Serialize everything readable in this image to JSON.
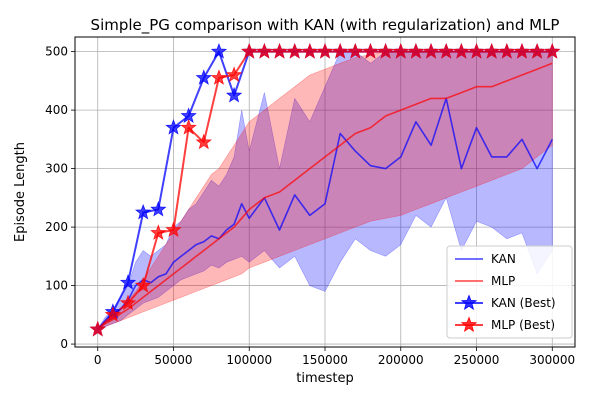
{
  "chart_data": {
    "type": "line",
    "title": "Simple_PG comparison with KAN (with regularization) and MLP",
    "xlabel": "timestep",
    "ylabel": "Episode Length",
    "xlim": [
      -15000,
      315000
    ],
    "ylim": [
      -5,
      525
    ],
    "x_ticks": [
      0,
      50000,
      100000,
      150000,
      200000,
      250000,
      300000
    ],
    "x_tick_labels": [
      "0",
      "50000",
      "100000",
      "150000",
      "200000",
      "250000",
      "300000"
    ],
    "y_ticks": [
      0,
      100,
      200,
      300,
      400,
      500
    ],
    "y_tick_labels": [
      "0",
      "100",
      "200",
      "300",
      "400",
      "500"
    ],
    "grid": true,
    "legend_position": "bottom-right",
    "series": [
      {
        "name": "KAN",
        "color": "#0000ff",
        "style": "line",
        "x": [
          0,
          5000,
          10000,
          15000,
          20000,
          25000,
          30000,
          35000,
          40000,
          45000,
          50000,
          55000,
          60000,
          65000,
          70000,
          75000,
          80000,
          85000,
          90000,
          95000,
          100000,
          110000,
          120000,
          130000,
          140000,
          150000,
          160000,
          170000,
          180000,
          190000,
          200000,
          210000,
          220000,
          230000,
          240000,
          250000,
          260000,
          270000,
          280000,
          290000,
          300000
        ],
        "y": [
          26,
          38,
          45,
          60,
          75,
          100,
          110,
          105,
          115,
          120,
          140,
          150,
          160,
          170,
          175,
          185,
          180,
          195,
          205,
          240,
          215,
          250,
          195,
          255,
          220,
          240,
          360,
          330,
          305,
          300,
          320,
          380,
          340,
          420,
          300,
          370,
          320,
          320,
          350,
          300,
          350
        ],
        "band_low": [
          26,
          30,
          35,
          40,
          50,
          60,
          70,
          75,
          80,
          90,
          100,
          110,
          115,
          120,
          125,
          135,
          130,
          140,
          145,
          150,
          140,
          160,
          130,
          150,
          100,
          90,
          140,
          180,
          160,
          150,
          170,
          220,
          200,
          250,
          160,
          210,
          200,
          180,
          190,
          120,
          160
        ],
        "band_high": [
          26,
          46,
          60,
          80,
          100,
          140,
          160,
          150,
          160,
          170,
          200,
          210,
          230,
          240,
          260,
          280,
          270,
          290,
          320,
          400,
          330,
          430,
          300,
          420,
          380,
          440,
          500,
          500,
          480,
          500,
          500,
          500,
          500,
          500,
          500,
          500,
          500,
          500,
          500,
          500,
          500
        ]
      },
      {
        "name": "MLP",
        "color": "#ff0000",
        "style": "line",
        "x": [
          0,
          5000,
          10000,
          15000,
          20000,
          25000,
          30000,
          35000,
          40000,
          45000,
          50000,
          55000,
          60000,
          65000,
          70000,
          75000,
          80000,
          85000,
          90000,
          95000,
          100000,
          110000,
          120000,
          130000,
          140000,
          150000,
          160000,
          170000,
          180000,
          190000,
          200000,
          210000,
          220000,
          230000,
          240000,
          250000,
          260000,
          270000,
          280000,
          290000,
          300000
        ],
        "y": [
          26,
          35,
          42,
          52,
          60,
          70,
          80,
          90,
          100,
          110,
          120,
          130,
          140,
          150,
          160,
          170,
          180,
          190,
          200,
          215,
          230,
          250,
          260,
          280,
          300,
          320,
          340,
          360,
          370,
          390,
          400,
          410,
          420,
          420,
          430,
          440,
          440,
          450,
          460,
          470,
          480
        ],
        "band_low": [
          26,
          30,
          35,
          40,
          45,
          50,
          55,
          60,
          65,
          70,
          75,
          80,
          85,
          90,
          95,
          100,
          105,
          110,
          115,
          120,
          130,
          140,
          150,
          160,
          170,
          180,
          190,
          200,
          210,
          215,
          220,
          230,
          240,
          250,
          260,
          270,
          280,
          290,
          300,
          320,
          340
        ],
        "band_high": [
          26,
          40,
          50,
          60,
          75,
          90,
          110,
          130,
          150,
          170,
          190,
          210,
          230,
          250,
          270,
          290,
          300,
          320,
          340,
          360,
          380,
          400,
          420,
          440,
          460,
          470,
          480,
          490,
          495,
          500,
          500,
          500,
          500,
          500,
          500,
          500,
          500,
          500,
          500,
          500,
          500
        ]
      },
      {
        "name": "KAN (Best)",
        "color": "#0000ff",
        "style": "line-star",
        "x": [
          0,
          10000,
          20000,
          30000,
          40000,
          50000,
          60000,
          70000,
          80000,
          90000,
          100000,
          110000,
          120000,
          130000,
          140000,
          150000,
          160000,
          170000,
          180000,
          190000,
          200000,
          210000,
          220000,
          230000,
          240000,
          250000,
          260000,
          270000,
          280000,
          290000,
          300000
        ],
        "y": [
          25,
          55,
          105,
          225,
          230,
          370,
          390,
          455,
          500,
          425,
          500,
          500,
          500,
          500,
          500,
          500,
          500,
          500,
          500,
          500,
          500,
          500,
          500,
          500,
          500,
          500,
          500,
          500,
          500,
          500,
          500
        ]
      },
      {
        "name": "MLP (Best)",
        "color": "#ff0000",
        "style": "line-star",
        "x": [
          0,
          10000,
          20000,
          30000,
          40000,
          50000,
          60000,
          70000,
          80000,
          90000,
          100000,
          110000,
          120000,
          130000,
          140000,
          150000,
          160000,
          170000,
          180000,
          190000,
          200000,
          210000,
          220000,
          230000,
          240000,
          250000,
          260000,
          270000,
          280000,
          290000,
          300000
        ],
        "y": [
          25,
          50,
          70,
          100,
          190,
          195,
          370,
          345,
          455,
          460,
          500,
          500,
          500,
          500,
          500,
          500,
          500,
          500,
          500,
          500,
          500,
          500,
          500,
          500,
          500,
          500,
          500,
          500,
          500,
          500,
          500
        ]
      }
    ]
  }
}
